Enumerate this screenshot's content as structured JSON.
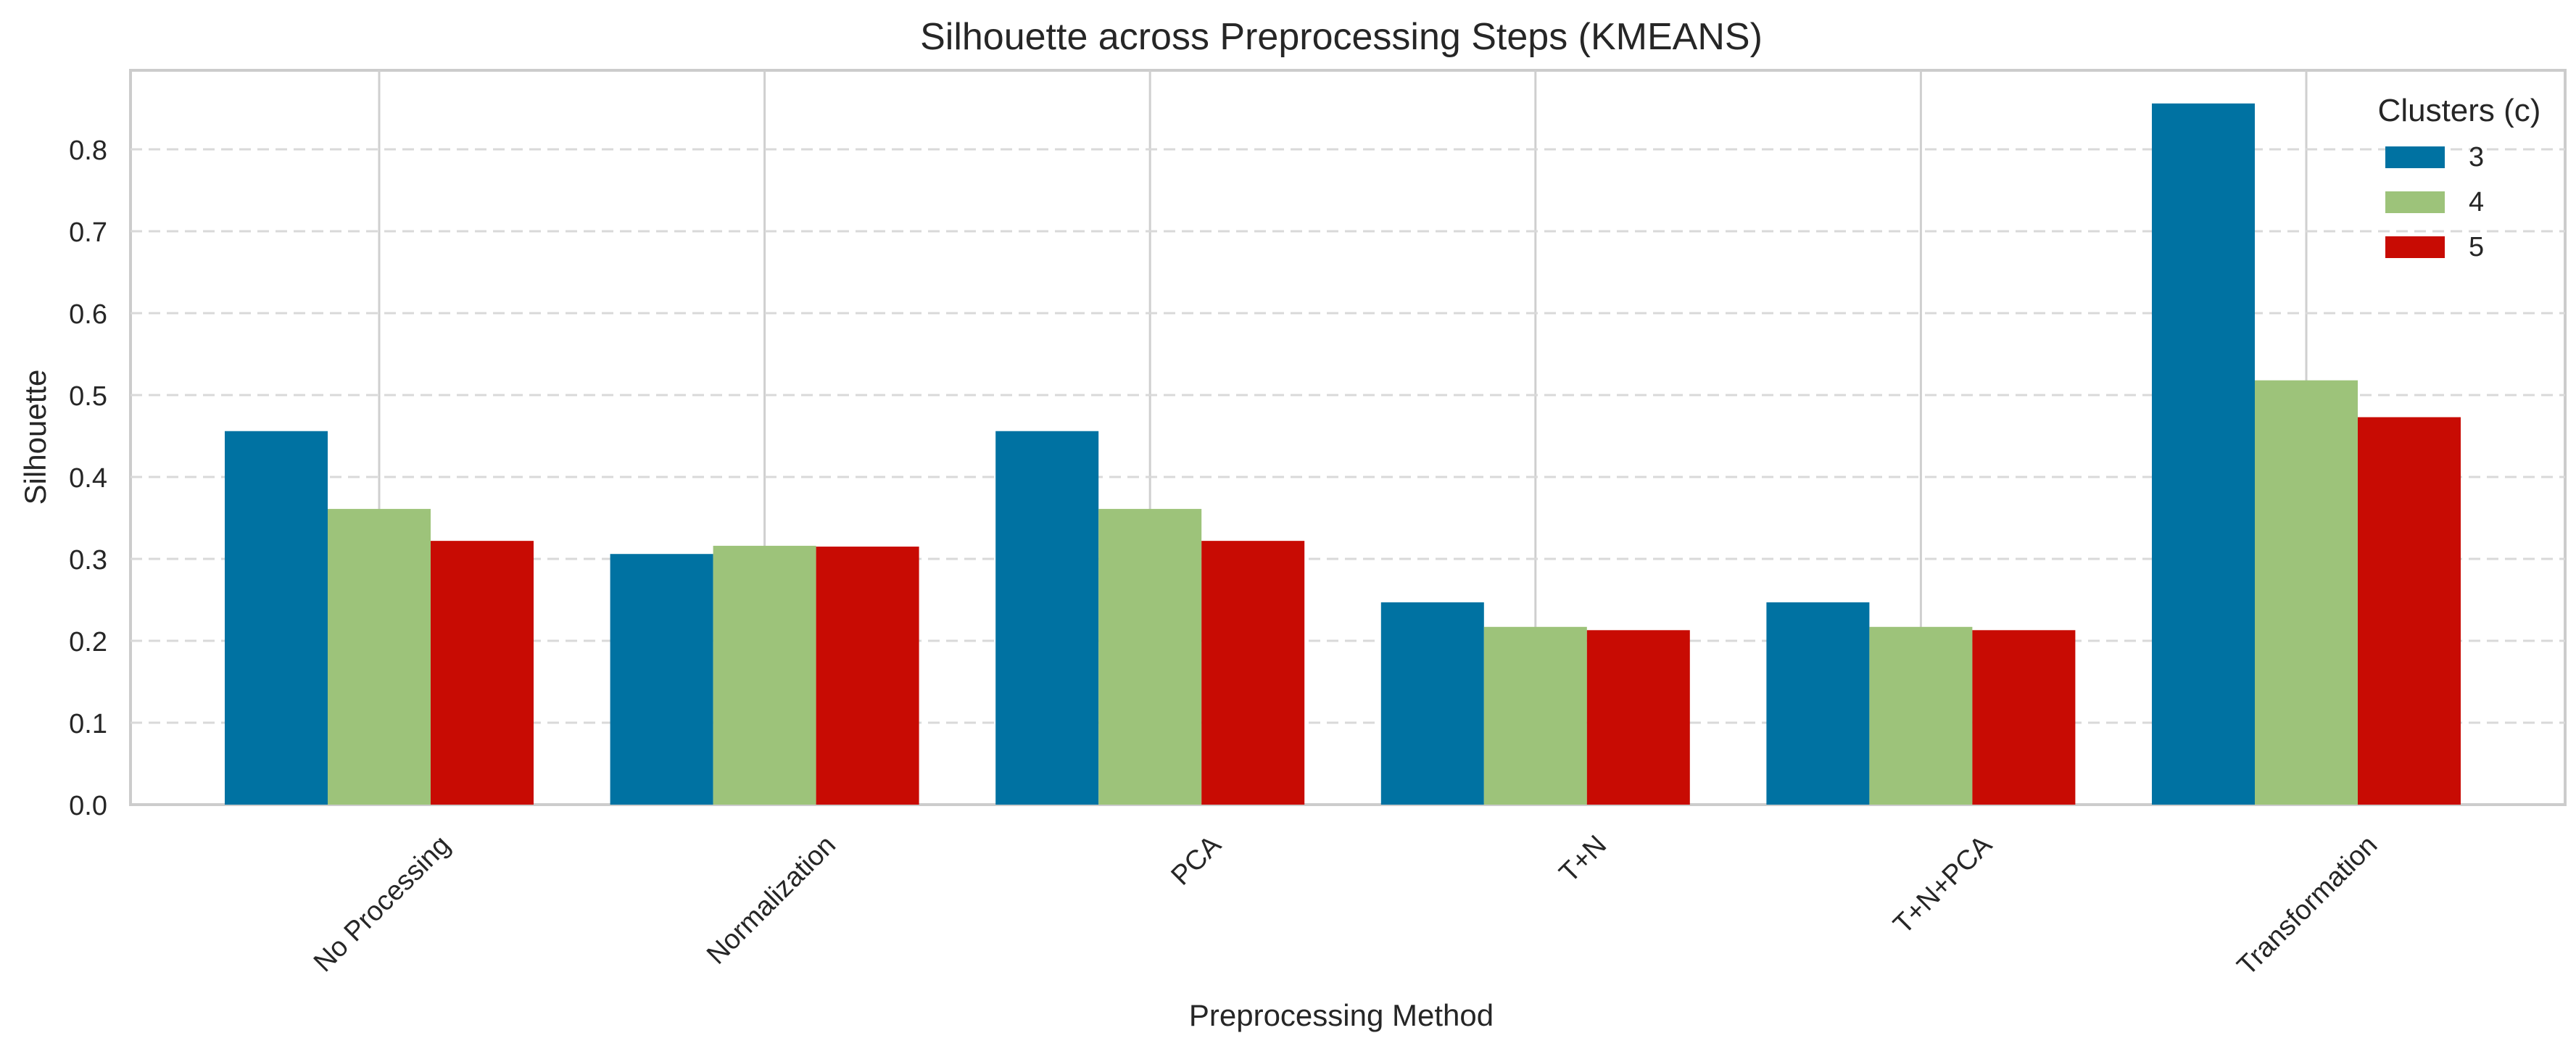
{
  "chart_data": {
    "type": "bar",
    "title": "Silhouette across Preprocessing Steps (KMEANS)",
    "xlabel": "Preprocessing Method",
    "ylabel": "Silhouette",
    "categories": [
      "No Processing",
      "Normalization",
      "PCA",
      "T+N",
      "T+N+PCA",
      "Transformation"
    ],
    "series": [
      {
        "name": "3",
        "color": "#0072A2",
        "values": [
          0.456,
          0.306,
          0.456,
          0.247,
          0.247,
          0.856
        ]
      },
      {
        "name": "4",
        "color": "#9DC37A",
        "values": [
          0.361,
          0.316,
          0.361,
          0.217,
          0.217,
          0.518
        ]
      },
      {
        "name": "5",
        "color": "#C80B03",
        "values": [
          0.322,
          0.315,
          0.322,
          0.213,
          0.213,
          0.473
        ]
      }
    ],
    "ylim": [
      0,
      0.9
    ],
    "yticks": [
      "0.0",
      "0.1",
      "0.2",
      "0.3",
      "0.4",
      "0.5",
      "0.6",
      "0.7",
      "0.8"
    ],
    "grid": {
      "y": "dashed",
      "x": "solid at categories"
    },
    "legend": {
      "title": "Clusters (c)",
      "placement": "top-right"
    }
  }
}
